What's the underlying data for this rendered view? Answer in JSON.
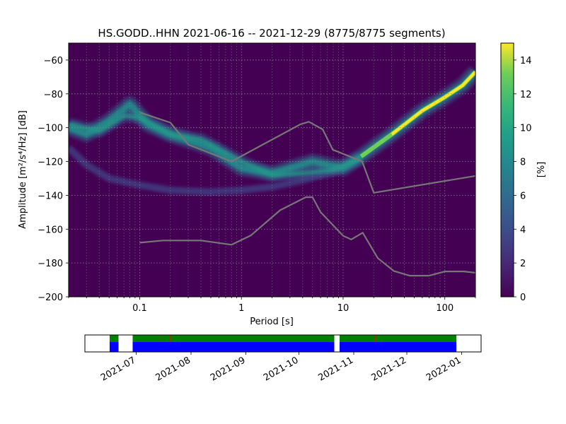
{
  "chart_data": {
    "type": "heatmap",
    "title": "HS.GODD..HHN   2021-06-16 -- 2021-12-29  (8775/8775 segments)",
    "xlabel": "Period [s]",
    "ylabel": "Amplitude [m²/s⁴/Hz] [dB]",
    "x_scale": "log",
    "xlim": [
      0.02,
      200
    ],
    "ylim": [
      -200,
      -50
    ],
    "x_ticks": [
      {
        "value": 0.1,
        "label": "0.1"
      },
      {
        "value": 1,
        "label": "1"
      },
      {
        "value": 10,
        "label": "10"
      },
      {
        "value": 100,
        "label": "100"
      }
    ],
    "y_ticks": [
      {
        "value": -60,
        "label": "−60"
      },
      {
        "value": -80,
        "label": "−80"
      },
      {
        "value": -100,
        "label": "−100"
      },
      {
        "value": -120,
        "label": "−120"
      },
      {
        "value": -140,
        "label": "−140"
      },
      {
        "value": -160,
        "label": "−160"
      },
      {
        "value": -180,
        "label": "−180"
      },
      {
        "value": -200,
        "label": "−200"
      }
    ],
    "grid": true,
    "colorbar": {
      "label": "[%]",
      "range": [
        0,
        15
      ],
      "ticks": [
        {
          "value": 0,
          "label": "0"
        },
        {
          "value": 2,
          "label": "2"
        },
        {
          "value": 4,
          "label": "4"
        },
        {
          "value": 6,
          "label": "6"
        },
        {
          "value": 8,
          "label": "8"
        },
        {
          "value": 10,
          "label": "10"
        },
        {
          "value": 12,
          "label": "12"
        },
        {
          "value": 14,
          "label": "14"
        }
      ]
    },
    "noise_models": [
      {
        "points": [
          [
            0.1,
            -91
          ],
          [
            0.2,
            -97
          ],
          [
            0.3,
            -110
          ],
          [
            0.8,
            -120
          ],
          [
            3.8,
            -98
          ],
          [
            4.6,
            -96.5
          ],
          [
            6.3,
            -101
          ],
          [
            7.9,
            -113
          ],
          [
            15.4,
            -120
          ],
          [
            20,
            -138.5
          ],
          [
            200,
            -128.5
          ]
        ]
      },
      {
        "points": [
          [
            0.1,
            -168
          ],
          [
            0.17,
            -166.7
          ],
          [
            0.4,
            -166.7
          ],
          [
            0.8,
            -169.2
          ],
          [
            1.24,
            -163.7
          ],
          [
            2.4,
            -148.8
          ],
          [
            4.3,
            -141.1
          ],
          [
            5,
            -141.1
          ],
          [
            6,
            -149.9
          ],
          [
            10,
            -163.9
          ],
          [
            12,
            -166.1
          ],
          [
            15.6,
            -162.1
          ],
          [
            21.9,
            -177.1
          ],
          [
            31.6,
            -184.8
          ],
          [
            45,
            -187.5
          ],
          [
            70,
            -187.5
          ],
          [
            101,
            -185
          ],
          [
            154,
            -185
          ],
          [
            200,
            -185.8
          ]
        ]
      }
    ],
    "psd_density": {
      "main_branch": [
        [
          0.02,
          -100
        ],
        [
          0.03,
          -104
        ],
        [
          0.05,
          -96
        ],
        [
          0.08,
          -86
        ],
        [
          0.12,
          -98
        ],
        [
          0.2,
          -104
        ],
        [
          0.5,
          -112
        ],
        [
          1,
          -124
        ],
        [
          2,
          -127
        ],
        [
          5,
          -120
        ],
        [
          10,
          -124
        ],
        [
          15,
          -117
        ],
        [
          30,
          -104
        ],
        [
          60,
          -90
        ],
        [
          100,
          -82
        ],
        [
          150,
          -75
        ],
        [
          200,
          -67
        ]
      ],
      "upper_branch": [
        [
          0.02,
          -98
        ],
        [
          0.04,
          -102
        ],
        [
          0.07,
          -93
        ],
        [
          0.1,
          -94
        ],
        [
          0.2,
          -104
        ],
        [
          0.4,
          -107
        ],
        [
          1,
          -120
        ],
        [
          2,
          -128
        ],
        [
          4,
          -127
        ],
        [
          8,
          -125
        ],
        [
          15,
          -118
        ]
      ],
      "lower_branch": [
        [
          0.02,
          -112
        ],
        [
          0.03,
          -122
        ],
        [
          0.05,
          -130
        ],
        [
          0.1,
          -134
        ],
        [
          0.2,
          -137
        ],
        [
          0.5,
          -138
        ],
        [
          1,
          -137
        ],
        [
          2,
          -135
        ],
        [
          4,
          -131
        ],
        [
          8,
          -126
        ],
        [
          15,
          -118
        ]
      ]
    },
    "coverage_timeline": {
      "x_ticks": [
        "2021-07",
        "2021-08",
        "2021-09",
        "2021-10",
        "2021-11",
        "2021-12",
        "2022-01"
      ],
      "green_segments": [
        [
          "2021-06-16",
          "2021-06-21"
        ],
        [
          "2021-06-29",
          "2021-10-21"
        ],
        [
          "2021-10-24",
          "2021-12-29"
        ]
      ],
      "blue_segments": [
        [
          "2021-06-16",
          "2021-06-21"
        ],
        [
          "2021-06-29",
          "2021-10-21"
        ],
        [
          "2021-10-24",
          "2021-12-29"
        ]
      ],
      "red_marks": [
        "2021-07-15",
        "2021-07-20",
        "2021-11-13"
      ],
      "colors": {
        "green": "#008000",
        "blue": "#0000ff",
        "red": "#ff0000"
      }
    }
  }
}
